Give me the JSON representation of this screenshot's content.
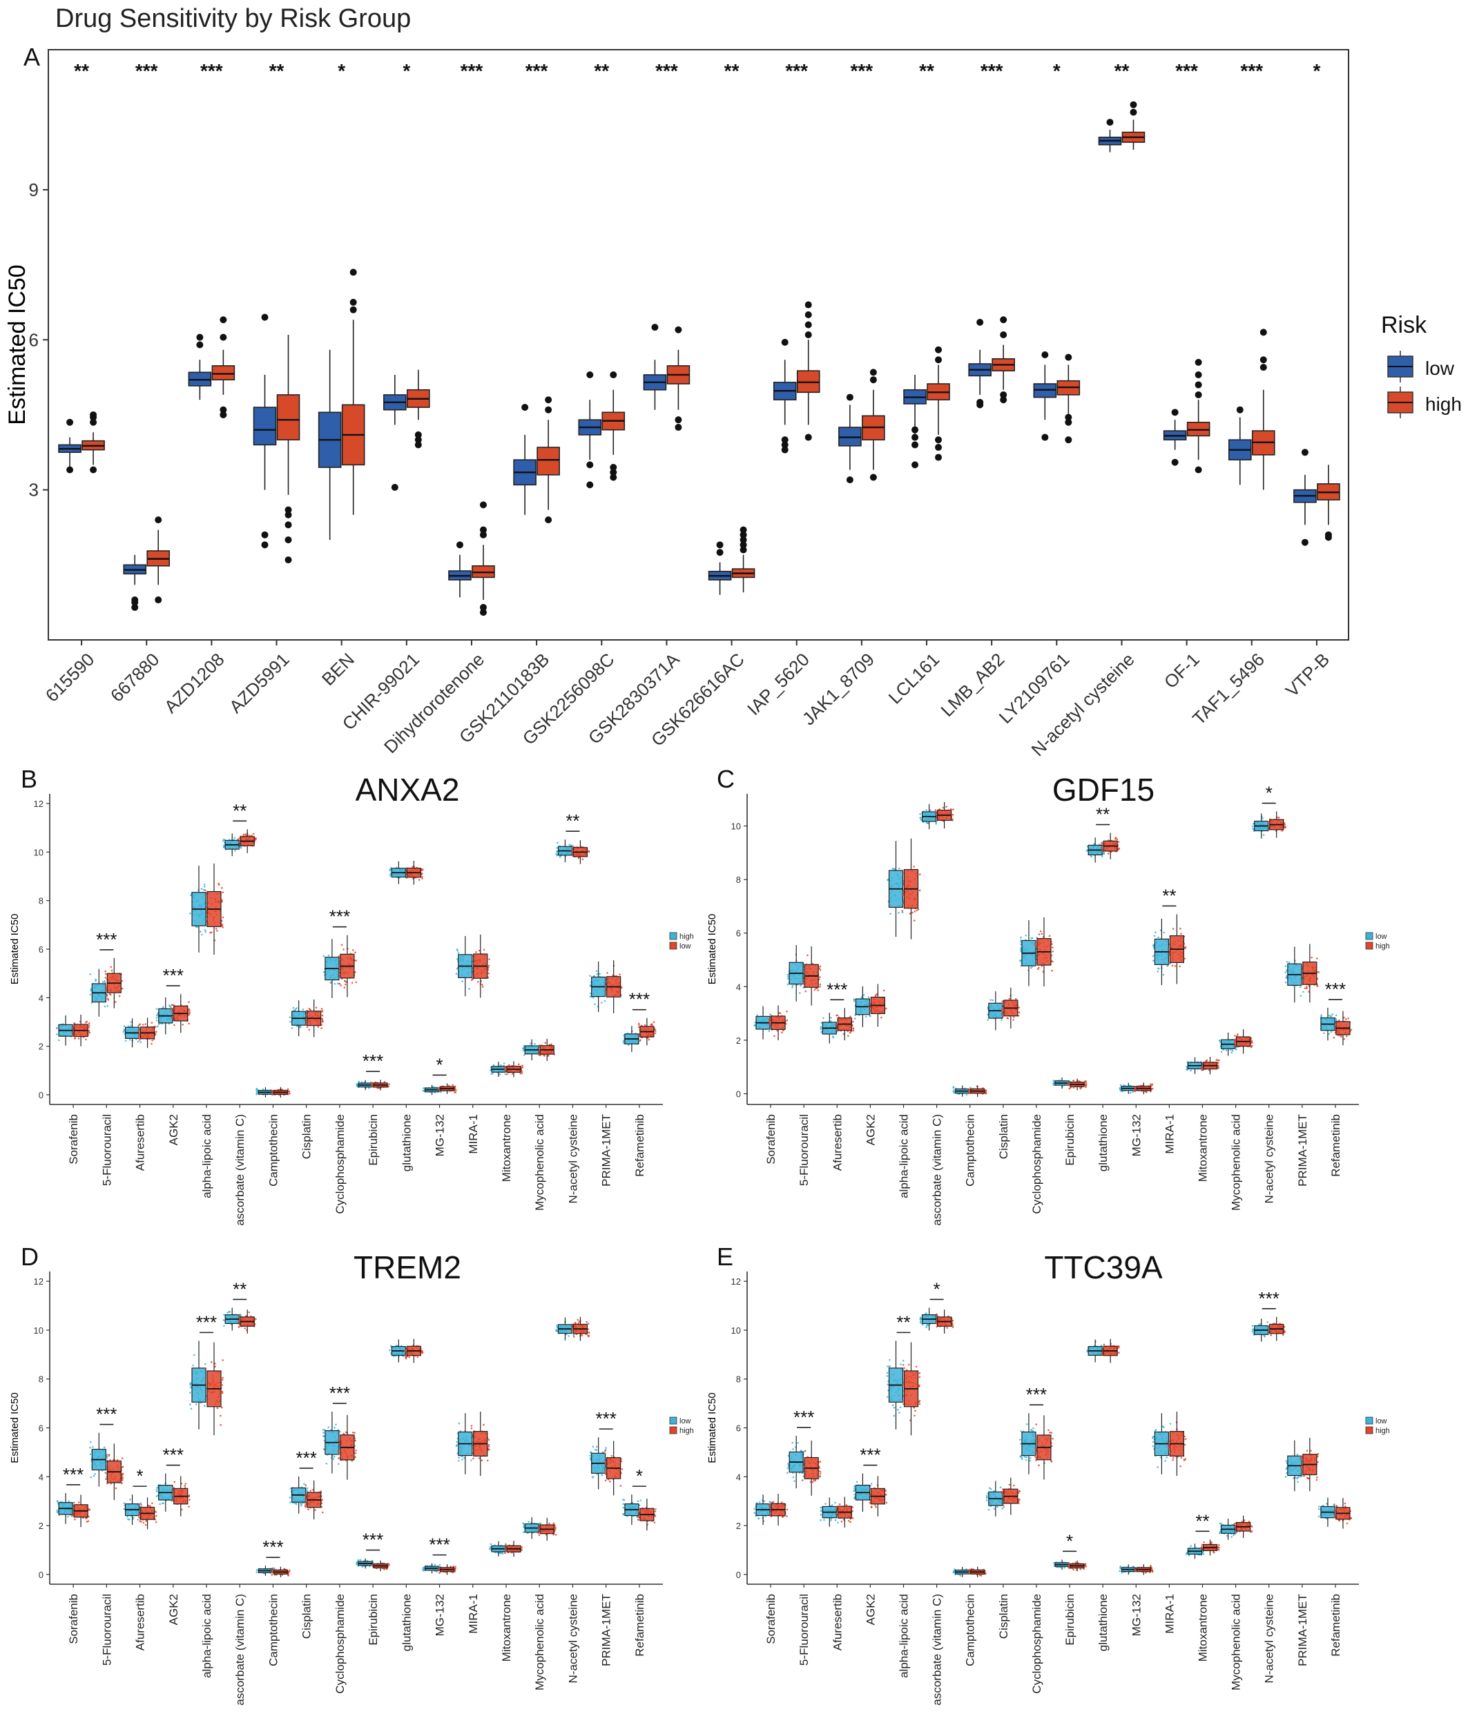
{
  "figure_title": "Drug Sensitivity by Risk Group",
  "colors": {
    "low": "#2F5EAA",
    "high": "#D64A2A",
    "cyan": "#3EB3D8",
    "red": "#E2452B",
    "frame": "#333333"
  },
  "chart_data": [
    {
      "panel": "A",
      "type": "box",
      "title": "",
      "xlabel": "",
      "ylabel": "Estimated IC50",
      "ylim": [
        0.0,
        11.8
      ],
      "yticks": [
        3,
        6,
        9
      ],
      "legend": {
        "title": "Risk",
        "entries": [
          "low",
          "high"
        ],
        "position": "right"
      },
      "series": [
        "low",
        "high"
      ],
      "categories": [
        "615590",
        "667880",
        "AZD1208",
        "AZD5991",
        "BEN",
        "CHIR-99021",
        "Dihydrorotenone",
        "GSK2110183B",
        "GSK2256098C",
        "GSK2830371A",
        "GSK626616AC",
        "IAP_5620",
        "JAK1_8709",
        "LCL161",
        "LMB_AB2",
        "LY2109761",
        "N-acetyl cysteine",
        "OF-1",
        "TAF1_5496",
        "VTP-B"
      ],
      "significance": [
        "**",
        "***",
        "***",
        "**",
        "*",
        "*",
        "***",
        "***",
        "**",
        "***",
        "**",
        "***",
        "***",
        "**",
        "***",
        "*",
        "**",
        "***",
        "***",
        "*"
      ],
      "boxes": {
        "low": [
          [
            3.4,
            3.75,
            3.82,
            3.9,
            4.05
          ],
          [
            1.1,
            1.32,
            1.4,
            1.5,
            1.7
          ],
          [
            4.8,
            5.08,
            5.2,
            5.35,
            5.6
          ],
          [
            3.0,
            3.9,
            4.2,
            4.65,
            5.3
          ],
          [
            2.0,
            3.45,
            4.0,
            4.55,
            5.8
          ],
          [
            4.3,
            4.6,
            4.75,
            4.9,
            5.3
          ],
          [
            0.85,
            1.2,
            1.28,
            1.38,
            1.7
          ],
          [
            2.5,
            3.1,
            3.35,
            3.6,
            4.1
          ],
          [
            3.6,
            4.1,
            4.25,
            4.4,
            4.8
          ],
          [
            4.6,
            5.0,
            5.15,
            5.3,
            5.6
          ],
          [
            0.9,
            1.2,
            1.28,
            1.37,
            1.55
          ],
          [
            4.3,
            4.8,
            4.98,
            5.15,
            5.6
          ],
          [
            3.4,
            3.88,
            4.05,
            4.25,
            4.7
          ],
          [
            4.1,
            4.72,
            4.85,
            5.0,
            5.3
          ],
          [
            4.9,
            5.28,
            5.4,
            5.52,
            5.8
          ],
          [
            4.4,
            4.85,
            5.0,
            5.12,
            5.5
          ],
          [
            9.75,
            9.9,
            9.98,
            10.05,
            10.2
          ],
          [
            3.8,
            4.0,
            4.08,
            4.18,
            4.4
          ],
          [
            3.1,
            3.6,
            3.8,
            4.0,
            4.45
          ],
          [
            2.3,
            2.75,
            2.88,
            3.0,
            3.3
          ]
        ],
        "high": [
          [
            3.5,
            3.8,
            3.88,
            3.98,
            4.15
          ],
          [
            1.1,
            1.48,
            1.62,
            1.78,
            2.2
          ],
          [
            4.9,
            5.2,
            5.32,
            5.48,
            5.8
          ],
          [
            2.9,
            4.0,
            4.4,
            4.9,
            6.1
          ],
          [
            2.5,
            3.5,
            4.1,
            4.7,
            6.4
          ],
          [
            4.4,
            4.65,
            4.82,
            5.0,
            5.4
          ],
          [
            0.8,
            1.25,
            1.35,
            1.48,
            1.9
          ],
          [
            2.6,
            3.3,
            3.6,
            3.85,
            4.4
          ],
          [
            3.7,
            4.2,
            4.38,
            4.55,
            5.0
          ],
          [
            4.6,
            5.12,
            5.3,
            5.48,
            5.8
          ],
          [
            0.95,
            1.25,
            1.33,
            1.42,
            1.7
          ],
          [
            4.3,
            4.95,
            5.15,
            5.38,
            6.0
          ],
          [
            3.4,
            4.0,
            4.25,
            4.48,
            5.0
          ],
          [
            4.1,
            4.8,
            4.95,
            5.12,
            5.5
          ],
          [
            5.0,
            5.38,
            5.5,
            5.62,
            5.9
          ],
          [
            4.5,
            4.9,
            5.05,
            5.18,
            5.5
          ],
          [
            9.8,
            9.95,
            10.05,
            10.15,
            10.4
          ],
          [
            3.6,
            4.08,
            4.2,
            4.35,
            4.8
          ],
          [
            3.0,
            3.7,
            3.95,
            4.18,
            5.0
          ],
          [
            2.3,
            2.8,
            2.95,
            3.12,
            3.5
          ]
        ]
      },
      "outliers": {
        "low": [
          [
            3.4,
            4.35
          ],
          [
            0.65,
            0.75,
            0.8
          ],
          [
            5.9,
            6.05
          ],
          [
            1.9,
            2.1,
            6.45
          ],
          [],
          [
            3.05
          ],
          [
            1.9
          ],
          [
            4.65
          ],
          [
            3.1,
            3.5,
            5.3
          ],
          [
            6.25
          ],
          [
            1.75,
            1.9
          ],
          [
            3.8,
            3.9,
            4.0,
            5.95
          ],
          [
            3.2,
            4.85
          ],
          [
            3.5,
            3.9,
            4.05,
            4.2
          ],
          [
            4.7,
            4.75,
            6.35
          ],
          [
            4.05,
            5.7
          ],
          [
            10.35
          ],
          [
            3.55,
            4.55
          ],
          [
            4.6
          ],
          [
            1.95,
            3.75
          ]
        ],
        "high": [
          [
            3.4,
            4.35,
            4.45,
            4.5
          ],
          [
            0.8,
            2.4
          ],
          [
            4.5,
            4.6,
            6.05,
            6.4
          ],
          [
            1.6,
            2.0,
            2.3,
            2.5,
            2.6
          ],
          [
            6.6,
            6.75,
            7.35
          ],
          [
            3.9,
            4.0,
            4.1
          ],
          [
            0.55,
            0.65,
            2.1,
            2.2,
            2.7
          ],
          [
            2.4,
            4.6,
            4.8
          ],
          [
            3.25,
            3.35,
            3.45,
            5.3
          ],
          [
            4.25,
            4.4,
            6.2
          ],
          [
            1.8,
            1.9,
            2.0,
            2.1,
            2.2
          ],
          [
            4.05,
            6.1,
            6.3,
            6.5,
            6.7
          ],
          [
            3.25,
            5.2,
            5.35
          ],
          [
            3.65,
            3.85,
            4.0,
            5.6,
            5.8
          ],
          [
            4.8,
            4.9,
            6.1,
            6.4
          ],
          [
            4.0,
            4.35,
            4.45,
            5.65
          ],
          [
            10.55,
            10.7
          ],
          [
            3.4,
            4.9,
            5.1,
            5.3,
            5.55
          ],
          [
            6.15,
            5.6,
            5.45
          ],
          [
            2.05,
            2.1
          ]
        ]
      }
    },
    {
      "panel": "B",
      "type": "box",
      "title": "ANXA2",
      "ylabel": "Estimated IC50",
      "ylim": [
        -0.4,
        12.4
      ],
      "yticks": [
        0,
        2,
        4,
        6,
        8,
        10,
        12
      ],
      "legend": {
        "entries": [
          "high",
          "low"
        ],
        "colors": [
          "cyan",
          "red"
        ],
        "position": "right"
      },
      "categories": [
        "Sorafenib",
        "5-Fluorouracil",
        "Afuresertib",
        "AGK2",
        "alpha-lipoic acid",
        "ascorbate (vitamin C)",
        "Camptothecin",
        "Cisplatin",
        "Cyclophosphamide",
        "Epirubicin",
        "glutathione",
        "MG-132",
        "MIRA-1",
        "Mitoxantrone",
        "Mycophenolic acid",
        "N-acetyl cysteine",
        "PRIMA-1MET",
        "Refametinib"
      ],
      "significance": [
        "",
        "***",
        "",
        "***",
        "",
        "**",
        "",
        "",
        "***",
        "***",
        "",
        "*",
        "",
        "",
        "",
        "**",
        "",
        "***"
      ],
      "medians": {
        "first": [
          2.65,
          4.2,
          2.55,
          3.25,
          7.65,
          10.3,
          0.1,
          3.15,
          5.2,
          0.4,
          9.15,
          0.2,
          5.3,
          1.05,
          1.85,
          10.05,
          4.45,
          2.3
        ],
        "second": [
          2.65,
          4.6,
          2.55,
          3.35,
          7.65,
          10.45,
          0.1,
          3.15,
          5.3,
          0.4,
          9.15,
          0.25,
          5.3,
          1.05,
          1.85,
          10.0,
          4.45,
          2.6
        ]
      }
    },
    {
      "panel": "C",
      "type": "box",
      "title": "GDF15",
      "ylabel": "Estimated IC50",
      "ylim": [
        -0.4,
        11.2
      ],
      "yticks": [
        0,
        2,
        4,
        6,
        8,
        10
      ],
      "legend": {
        "entries": [
          "low",
          "high"
        ],
        "colors": [
          "cyan",
          "red"
        ],
        "position": "right"
      },
      "categories": [
        "Sorafenib",
        "5-Fluorouracil",
        "Afuresertib",
        "AGK2",
        "alpha-lipoic acid",
        "ascorbate (vitamin C)",
        "Camptothecin",
        "Cisplatin",
        "Cyclophosphamide",
        "Epirubicin",
        "glutathione",
        "MG-132",
        "MIRA-1",
        "Mitoxantrone",
        "Mycophenolic acid",
        "N-acetyl cysteine",
        "PRIMA-1MET",
        "Refametinib"
      ],
      "significance": [
        "",
        "",
        "***",
        "",
        "",
        "",
        "",
        "",
        "",
        "",
        "**",
        "",
        "**",
        "",
        "",
        "*",
        "",
        "***"
      ],
      "medians": {
        "first": [
          2.65,
          4.5,
          2.45,
          3.25,
          7.65,
          10.35,
          0.1,
          3.1,
          5.25,
          0.4,
          9.1,
          0.2,
          5.3,
          1.05,
          1.85,
          10.0,
          4.45,
          2.6
        ],
        "second": [
          2.65,
          4.4,
          2.6,
          3.3,
          7.65,
          10.4,
          0.1,
          3.2,
          5.3,
          0.35,
          9.25,
          0.2,
          5.4,
          1.05,
          1.95,
          10.05,
          4.5,
          2.45
        ]
      }
    },
    {
      "panel": "D",
      "type": "box",
      "title": "TREM2",
      "ylabel": "Estimated IC50",
      "ylim": [
        -0.4,
        12.4
      ],
      "yticks": [
        0,
        2,
        4,
        6,
        8,
        10,
        12
      ],
      "legend": {
        "entries": [
          "low",
          "high"
        ],
        "colors": [
          "cyan",
          "red"
        ],
        "position": "right"
      },
      "categories": [
        "Sorafenib",
        "5-Fluorouracil",
        "Afuresertib",
        "AGK2",
        "alpha-lipoic acid",
        "ascorbate (vitamin C)",
        "Camptothecin",
        "Cisplatin",
        "Cyclophosphamide",
        "Epirubicin",
        "glutathione",
        "MG-132",
        "MIRA-1",
        "Mitoxantrone",
        "Mycophenolic acid",
        "N-acetyl cysteine",
        "PRIMA-1MET",
        "Refametinib"
      ],
      "significance": [
        "***",
        "***",
        "*",
        "***",
        "***",
        "**",
        "***",
        "***",
        "***",
        "***",
        "",
        "***",
        "",
        "",
        "",
        "",
        "***",
        "*"
      ],
      "medians": {
        "first": [
          2.7,
          4.7,
          2.65,
          3.35,
          7.75,
          10.45,
          0.15,
          3.25,
          5.4,
          0.45,
          9.15,
          0.25,
          5.35,
          1.05,
          1.9,
          10.05,
          4.55,
          2.65
        ],
        "second": [
          2.6,
          4.2,
          2.5,
          3.2,
          7.6,
          10.35,
          0.1,
          3.05,
          5.2,
          0.35,
          9.15,
          0.2,
          5.35,
          1.05,
          1.85,
          10.05,
          4.35,
          2.45
        ]
      }
    },
    {
      "panel": "E",
      "type": "box",
      "title": "TTC39A",
      "ylabel": "Estimated IC50",
      "ylim": [
        -0.4,
        12.4
      ],
      "yticks": [
        0,
        2,
        4,
        6,
        8,
        10,
        12
      ],
      "legend": {
        "entries": [
          "low",
          "high"
        ],
        "colors": [
          "cyan",
          "red"
        ],
        "position": "right"
      },
      "categories": [
        "Sorafenib",
        "5-Fluorouracil",
        "Afuresertib",
        "AGK2",
        "alpha-lipoic acid",
        "ascorbate (vitamin C)",
        "Camptothecin",
        "Cisplatin",
        "Cyclophosphamide",
        "Epirubicin",
        "glutathione",
        "MG-132",
        "MIRA-1",
        "Mitoxantrone",
        "Mycophenolic acid",
        "N-acetyl cysteine",
        "PRIMA-1MET",
        "Refametinib"
      ],
      "significance": [
        "",
        "***",
        "",
        "***",
        "**",
        "*",
        "",
        "",
        "***",
        "*",
        "",
        "",
        "",
        "**",
        "",
        "***",
        "",
        ""
      ],
      "medians": {
        "first": [
          2.65,
          4.6,
          2.55,
          3.35,
          7.75,
          10.45,
          0.1,
          3.1,
          5.35,
          0.4,
          9.15,
          0.2,
          5.35,
          0.95,
          1.85,
          10.0,
          4.45,
          2.55
        ],
        "second": [
          2.65,
          4.35,
          2.55,
          3.2,
          7.6,
          10.35,
          0.1,
          3.2,
          5.2,
          0.35,
          9.15,
          0.2,
          5.35,
          1.1,
          1.95,
          10.05,
          4.5,
          2.5
        ]
      }
    }
  ]
}
